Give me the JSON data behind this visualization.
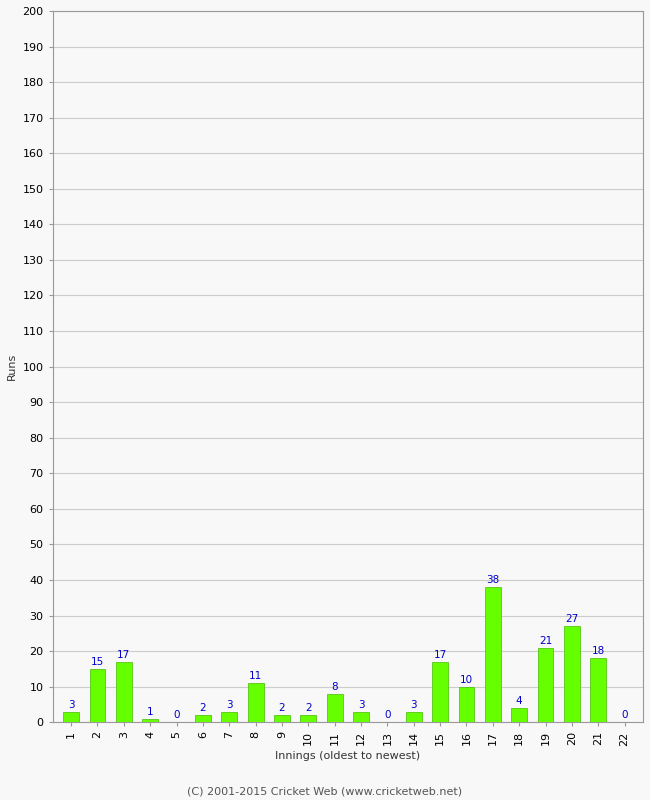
{
  "innings": [
    1,
    2,
    3,
    4,
    5,
    6,
    7,
    8,
    9,
    10,
    11,
    12,
    13,
    14,
    15,
    16,
    17,
    18,
    19,
    20,
    21,
    22
  ],
  "runs": [
    3,
    15,
    17,
    1,
    0,
    2,
    3,
    11,
    2,
    2,
    8,
    3,
    0,
    3,
    17,
    10,
    38,
    4,
    21,
    27,
    18,
    0
  ],
  "bar_color": "#66ff00",
  "bar_edge_color": "#44bb00",
  "label_color": "#0000cc",
  "ylabel": "Runs",
  "xlabel": "Innings (oldest to newest)",
  "ylim": [
    0,
    200
  ],
  "yticks": [
    0,
    10,
    20,
    30,
    40,
    50,
    60,
    70,
    80,
    90,
    100,
    110,
    120,
    130,
    140,
    150,
    160,
    170,
    180,
    190,
    200
  ],
  "footer": "(C) 2001-2015 Cricket Web (www.cricketweb.net)",
  "bg_color": "#f8f8f8",
  "grid_color": "#cccccc",
  "axis_color": "#999999"
}
